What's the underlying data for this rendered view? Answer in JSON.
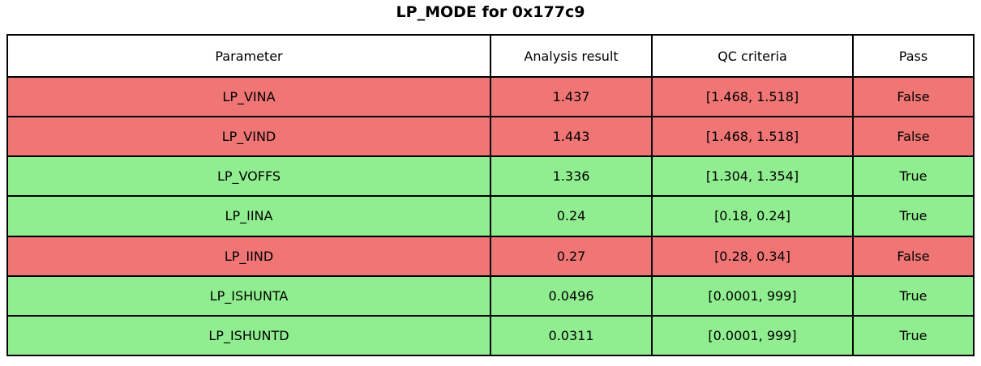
{
  "title": "LP_MODE for 0x177c9",
  "chart_data": {
    "type": "table",
    "title": "LP_MODE for 0x177c9",
    "columns": [
      "Parameter",
      "Analysis result",
      "QC criteria",
      "Pass"
    ],
    "rows": [
      [
        "LP_VINA",
        "1.437",
        "[1.468, 1.518]",
        "False"
      ],
      [
        "LP_VIND",
        "1.443",
        "[1.468, 1.518]",
        "False"
      ],
      [
        "LP_VOFFS",
        "1.336",
        "[1.304, 1.354]",
        "True"
      ],
      [
        "LP_IINA",
        "0.24",
        "[0.18, 0.24]",
        "True"
      ],
      [
        "LP_IIND",
        "0.27",
        "[0.28, 0.34]",
        "False"
      ],
      [
        "LP_ISHUNTA",
        "0.0496",
        "[0.0001, 999]",
        "True"
      ],
      [
        "LP_ISHUNTD",
        "0.0311",
        "[0.0001, 999]",
        "True"
      ]
    ],
    "row_status": [
      "fail",
      "fail",
      "pass",
      "pass",
      "fail",
      "pass",
      "pass"
    ],
    "status_colors": {
      "pass": "#90ee90",
      "fail": "#f07575"
    },
    "header_bg": "#ffffff",
    "border_color": "#000000"
  }
}
